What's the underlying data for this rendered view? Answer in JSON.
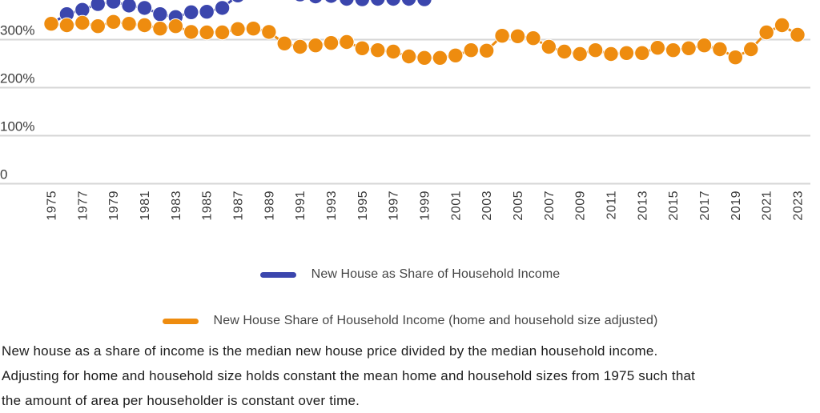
{
  "chart_data": {
    "type": "scatter",
    "x": [
      1975,
      1976,
      1977,
      1978,
      1979,
      1980,
      1981,
      1982,
      1983,
      1984,
      1985,
      1986,
      1987,
      1988,
      1989,
      1990,
      1991,
      1992,
      1993,
      1994,
      1995,
      1996,
      1997,
      1998,
      1999,
      2000,
      2001,
      2002,
      2003,
      2004,
      2005,
      2006,
      2007,
      2008,
      2009,
      2010,
      2011,
      2012,
      2013,
      2014,
      2015,
      2016,
      2017,
      2018,
      2019,
      2020,
      2021,
      2022,
      2023
    ],
    "x_tick_labels": [
      "1975",
      "1977",
      "1979",
      "1981",
      "1983",
      "1985",
      "1987",
      "1989",
      "1991",
      "1993",
      "1995",
      "1997",
      "1999",
      "2001",
      "2003",
      "2005",
      "2007",
      "2009",
      "2011",
      "2013",
      "2015",
      "2017",
      "2019",
      "2021",
      "2023"
    ],
    "y_ticks": [
      {
        "value": 0,
        "label": "0"
      },
      {
        "value": 100,
        "label": "100%"
      },
      {
        "value": 200,
        "label": "200%"
      },
      {
        "value": 300,
        "label": "300%"
      }
    ],
    "series": [
      {
        "name": "New House as Share of Household Income",
        "color": "#3b46ad",
        "values": [
          333,
          353,
          362,
          374,
          379,
          371,
          366,
          353,
          347,
          357,
          358,
          366,
          392,
          398,
          400,
          398,
          394,
          390,
          391,
          385,
          384,
          385,
          385,
          385,
          384,
          null,
          null,
          null,
          null,
          null,
          null,
          null,
          null,
          null,
          null,
          null,
          null,
          null,
          null,
          null,
          null,
          null,
          null,
          null,
          null,
          null,
          null,
          null,
          null
        ]
      },
      {
        "name": "New House Share of Household Income (home and household size adjusted)",
        "color": "#ee8c0f",
        "values": [
          333,
          330,
          335,
          328,
          337,
          333,
          330,
          323,
          328,
          316,
          315,
          315,
          322,
          323,
          316,
          292,
          285,
          288,
          293,
          295,
          282,
          278,
          275,
          265,
          262,
          262,
          267,
          278,
          277,
          308,
          307,
          303,
          285,
          275,
          270,
          278,
          270,
          272,
          272,
          283,
          278,
          282,
          288,
          280,
          263,
          280,
          315,
          330,
          310
        ]
      }
    ],
    "title": "",
    "xlabel": "",
    "ylabel": "",
    "grid": true,
    "legend_position": "bottom",
    "note": "chart is cropped at top; values above ~383% fall outside the visible area"
  },
  "legend": {
    "items": [
      {
        "label": "New House as Share of Household Income",
        "color": "#3b46ad"
      },
      {
        "label": "New House Share of Household Income (home and household size adjusted)",
        "color": "#ee8c0f"
      }
    ]
  },
  "caption": {
    "lines": [
      "New house as a share of income is the median new house price divided by the median household income.",
      "Adjusting for home and household size holds constant the mean home and household sizes from 1975 such that",
      "the amount of area per householder is constant over time."
    ]
  },
  "colors": {
    "blue": "#3b46ad",
    "orange": "#ee8c0f",
    "gridline": "#d6d6d6",
    "tick_text": "#3d3d3d",
    "legend_text": "#454545",
    "caption_text": "#1c1c1c"
  }
}
